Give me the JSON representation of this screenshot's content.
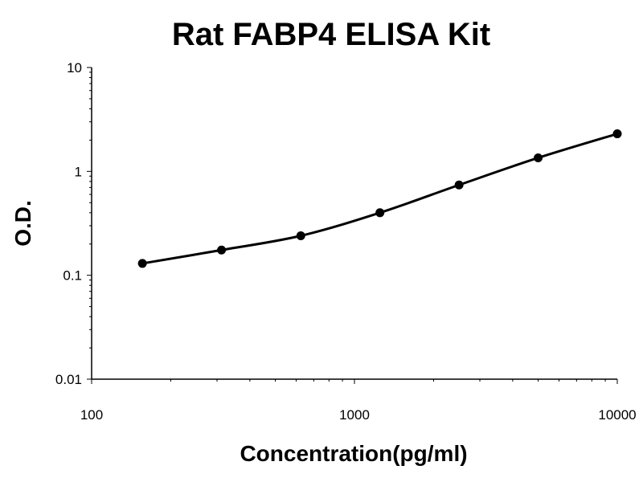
{
  "chart_data": {
    "type": "scatter",
    "title": "Rat FABP4 ELISA Kit",
    "xlabel": "Concentration(pg/ml)",
    "ylabel": "O.D.",
    "xscale": "log",
    "yscale": "log",
    "xlim": [
      100,
      10000
    ],
    "ylim": [
      0.01,
      10
    ],
    "xticks": [
      "100",
      "1000",
      "10000"
    ],
    "yticks": [
      "10",
      "1",
      "0.1",
      "0.01"
    ],
    "grid": false,
    "legend": "none",
    "series": [
      {
        "x": [
          156,
          312,
          625,
          1250,
          2500,
          5000,
          10000
        ],
        "y": [
          0.13,
          0.175,
          0.24,
          0.4,
          0.74,
          1.35,
          2.3
        ],
        "marker": "circle",
        "line": "smooth",
        "color": "#000000"
      }
    ]
  }
}
